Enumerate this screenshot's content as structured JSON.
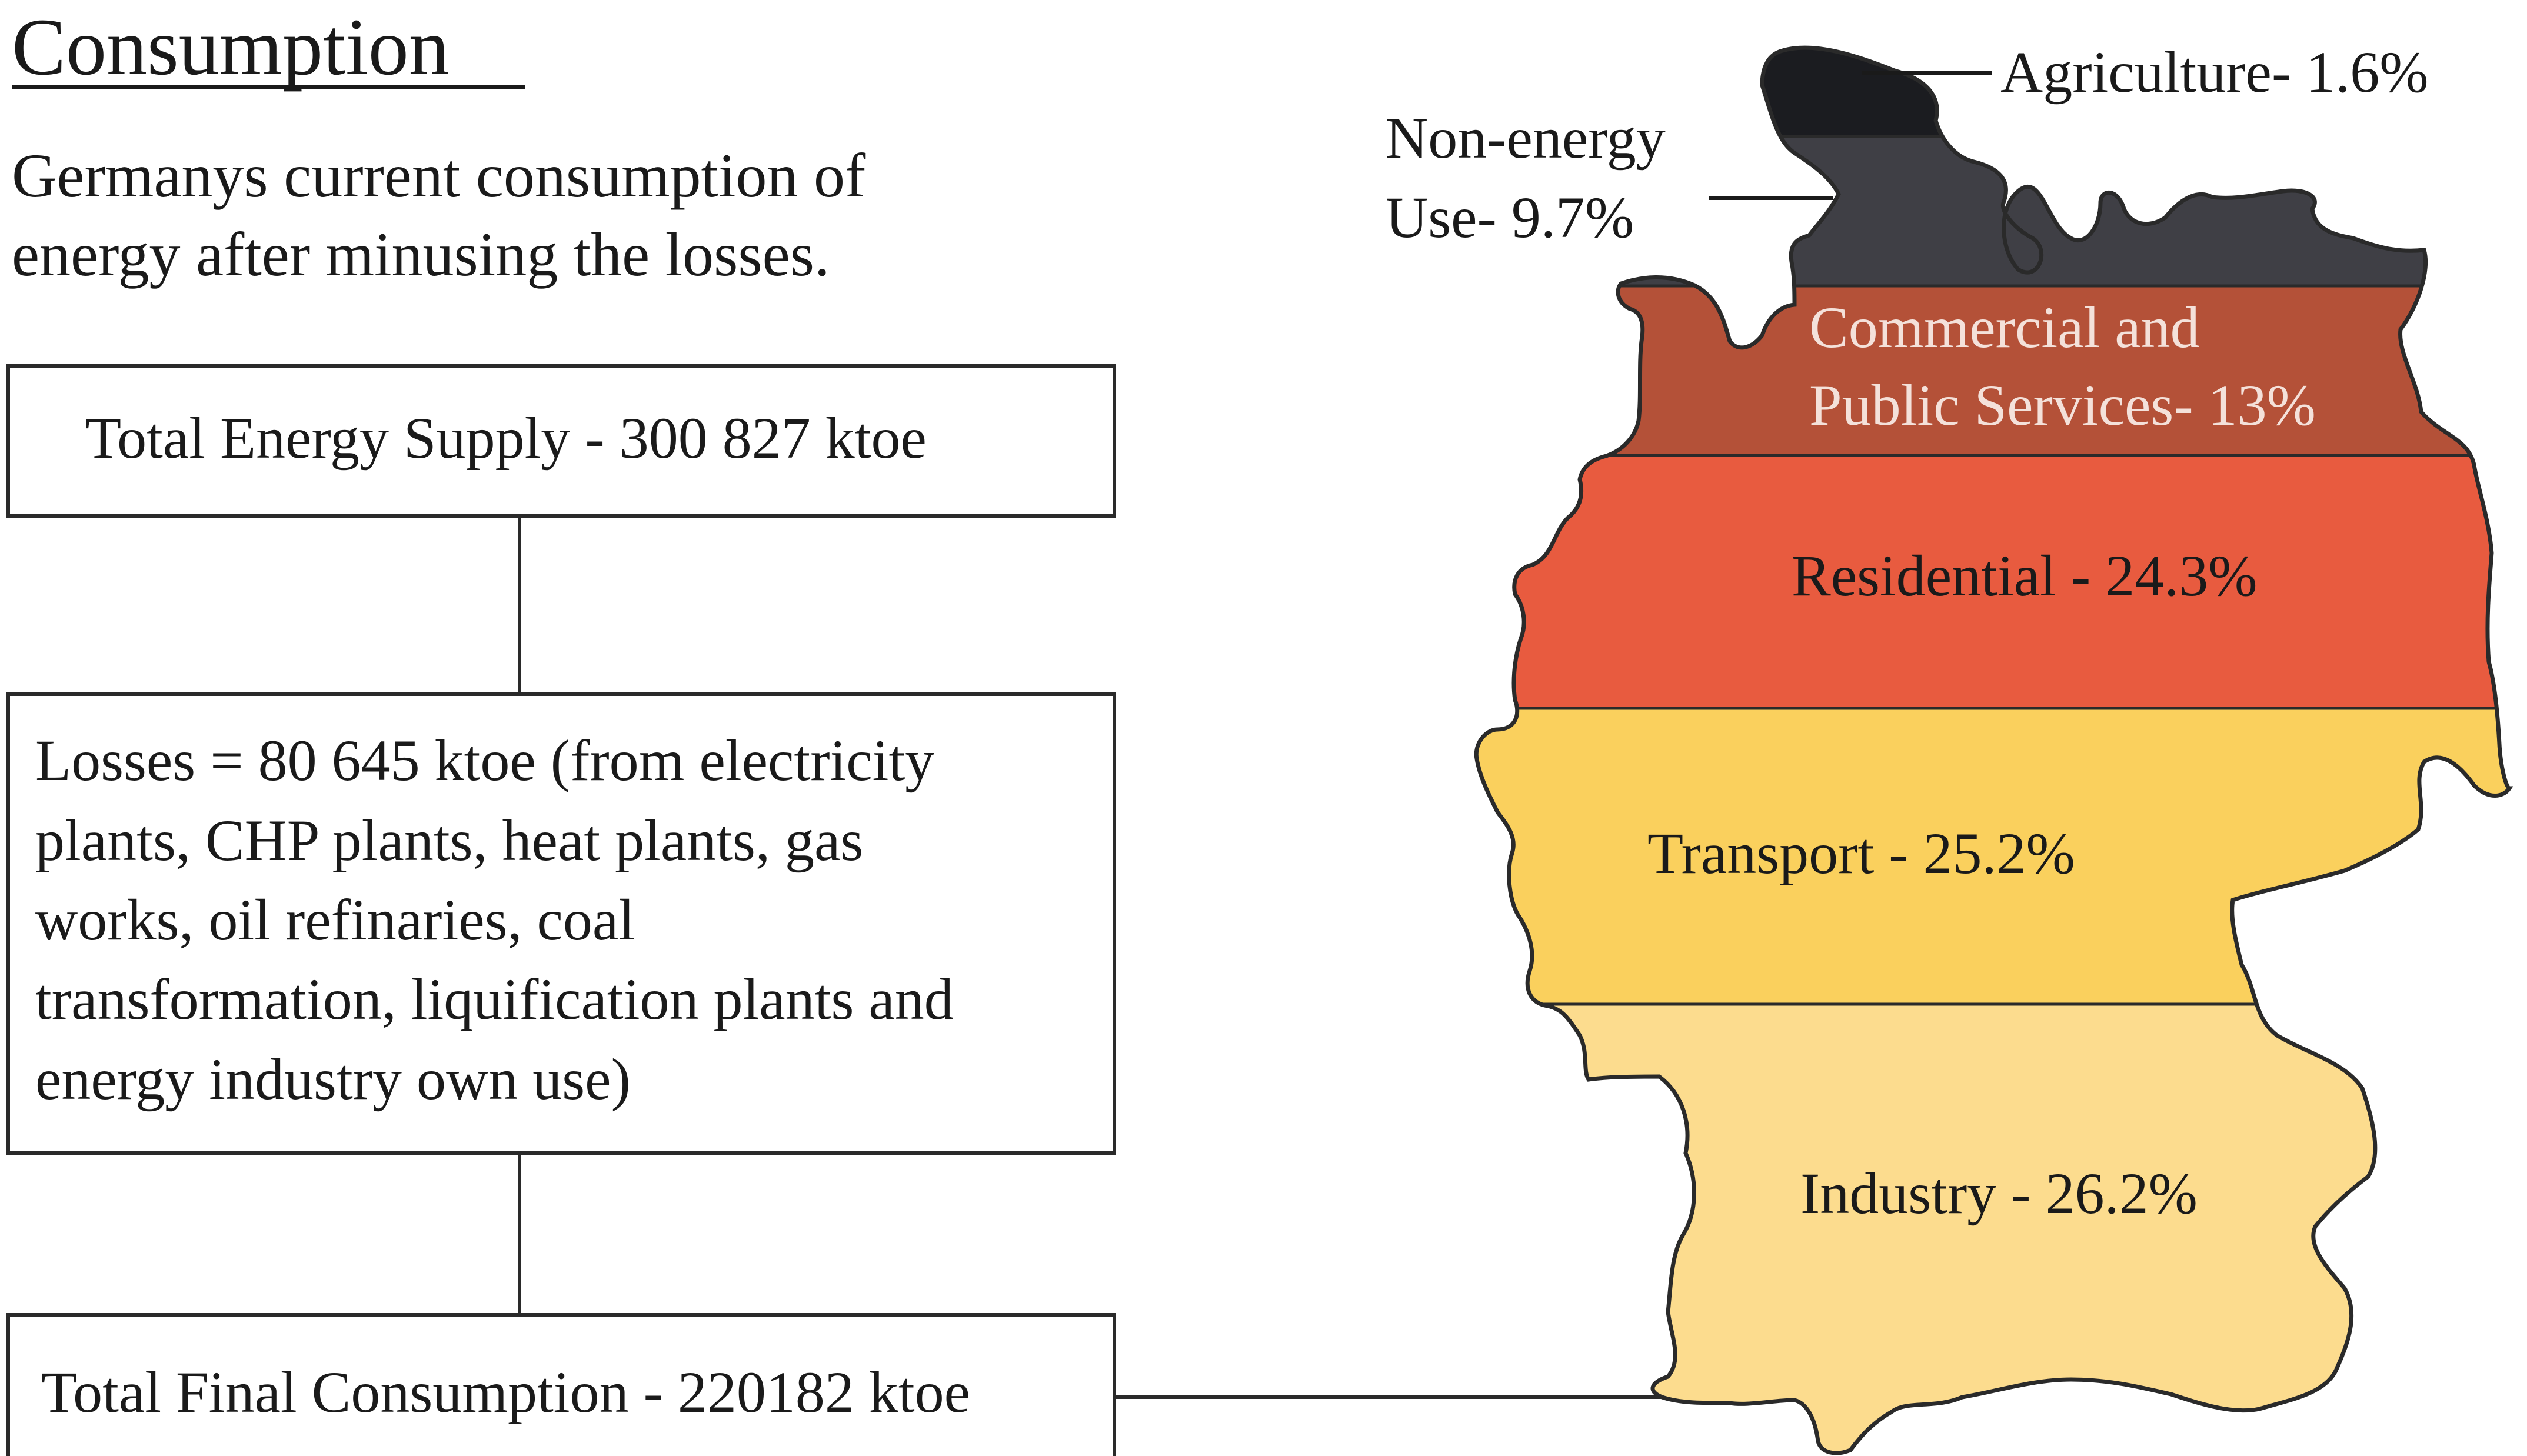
{
  "header": {
    "title": "Consumption",
    "subtitle_line1": "Germanys current consumption of",
    "subtitle_line2": "energy after minusing the losses."
  },
  "flow": {
    "supply": "Total Energy Supply - 300 827 ktoe",
    "losses_lines": [
      "Losses = 80 645 ktoe (from electricity",
      "plants, CHP plants, heat plants, gas",
      "works, oil refinaries, coal",
      "transformation, liquification plants and",
      "energy industry own use)"
    ],
    "final": "Total Final Consumption - 220182 ktoe"
  },
  "sectors": [
    {
      "label": "Agriculture- 1.6%",
      "value": 1.6,
      "color": "#1b1c20"
    },
    {
      "label_lines": [
        "Non-energy",
        "Use- 9.7%"
      ],
      "value": 9.7,
      "color": "#3f3f45"
    },
    {
      "label_lines": [
        "Commercial and",
        "Public Services- 13%"
      ],
      "value": 13,
      "color": "#b45138"
    },
    {
      "label": "Residential - 24.3%",
      "value": 24.3,
      "color": "#e85b3f"
    },
    {
      "label": "Transport - 25.2%",
      "value": 25.2,
      "color": "#fad05d"
    },
    {
      "label": "Industry - 26.2%",
      "value": 26.2,
      "color": "#fcdc8e"
    }
  ]
}
